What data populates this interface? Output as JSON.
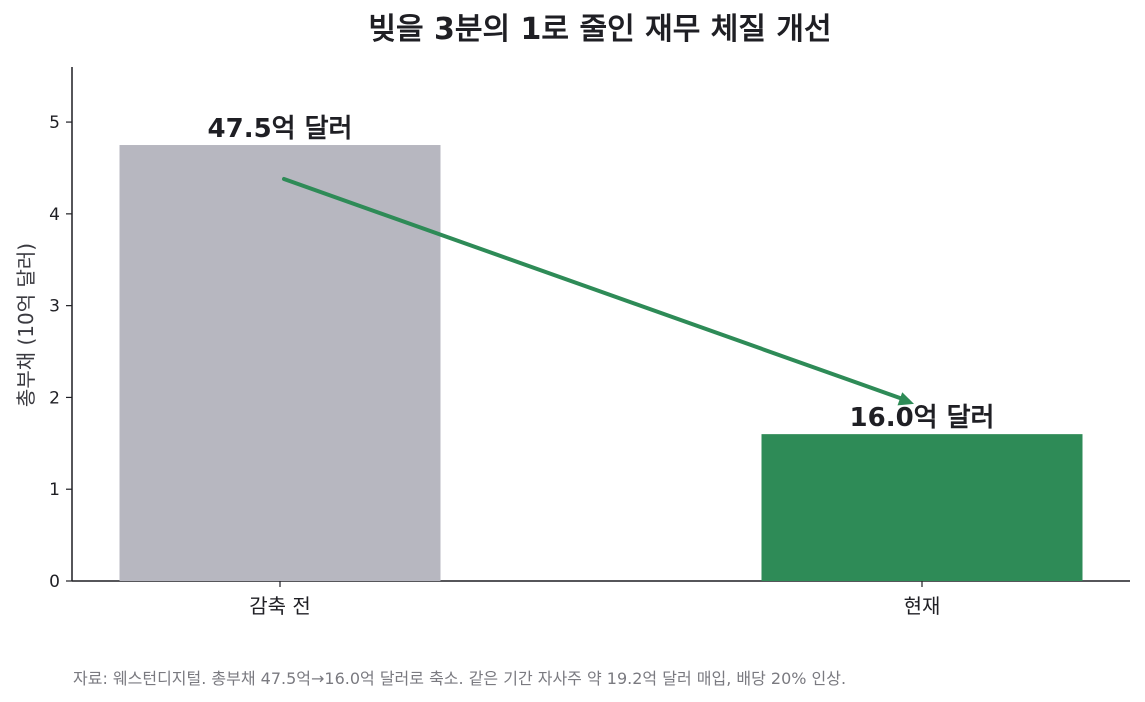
{
  "chart_data": {
    "type": "bar",
    "title": "빚을 3분의 1로 줄인 재무 체질 개선",
    "ylabel": "총부채 (10억 달러)",
    "xlabel": "",
    "categories": [
      "감축 전",
      "현재"
    ],
    "values": [
      4.75,
      1.6
    ],
    "data_labels": [
      "47.5억 달러",
      "16.0억 달러"
    ],
    "bar_colors": [
      "#b7b7c0",
      "#2e8b57"
    ],
    "arrow_color": "#2e8b57",
    "ylim": [
      0,
      5.6
    ],
    "yticks": [
      0,
      1,
      2,
      3,
      4,
      5
    ],
    "grid": false,
    "annotation": "arrow from first bar to second bar indicating reduction"
  },
  "footnote": "자료: 웨스턴디지털. 총부채 47.5억→16.0억 달러로 축소. 같은 기간 자사주 약 19.2억 달러 매입, 배당 20% 인상."
}
